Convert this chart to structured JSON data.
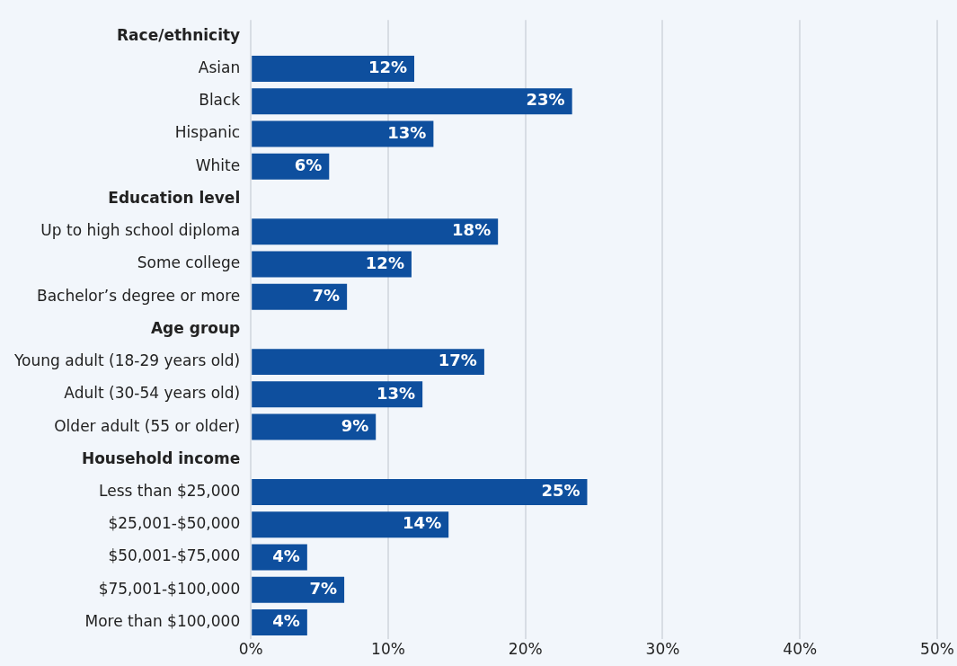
{
  "chart_data": {
    "type": "bar",
    "orientation": "horizontal",
    "categories": [
      "Race/ethnicity",
      "Asian",
      "Black",
      "Hispanic",
      "White",
      "Education level",
      "Up to high school diploma",
      "Some college",
      "Bachelor’s degree or more",
      "Age group",
      "Young adult (18-29 years old)",
      "Adult (30-54 years old)",
      "Older adult (55 or older)",
      "Household income",
      "Less than $25,000",
      "$25,001-$50,000",
      "$50,001-$75,000",
      "$75,001-$100,000",
      "More than $100,000"
    ],
    "values": [
      null,
      11.9,
      23.4,
      13.3,
      5.7,
      null,
      18.0,
      11.7,
      7.0,
      null,
      17.0,
      12.5,
      9.1,
      null,
      24.5,
      14.4,
      4.1,
      6.8,
      4.1
    ],
    "value_labels": [
      null,
      "12%",
      "23%",
      "13%",
      "6%",
      null,
      "18%",
      "12%",
      "7%",
      null,
      "17%",
      "13%",
      "9%",
      null,
      "25%",
      "14%",
      "4%",
      "7%",
      "4%"
    ],
    "color": "#0e4f9e",
    "xlim": [
      0,
      50
    ],
    "xticks": [
      {
        "value": 0,
        "label": "0%"
      },
      {
        "value": 10,
        "label": "10%"
      },
      {
        "value": 20,
        "label": "20%"
      },
      {
        "value": 30,
        "label": "30%"
      },
      {
        "value": 40,
        "label": "40%"
      },
      {
        "value": 50,
        "label": "50%"
      }
    ],
    "grid": "x",
    "legend": false
  }
}
